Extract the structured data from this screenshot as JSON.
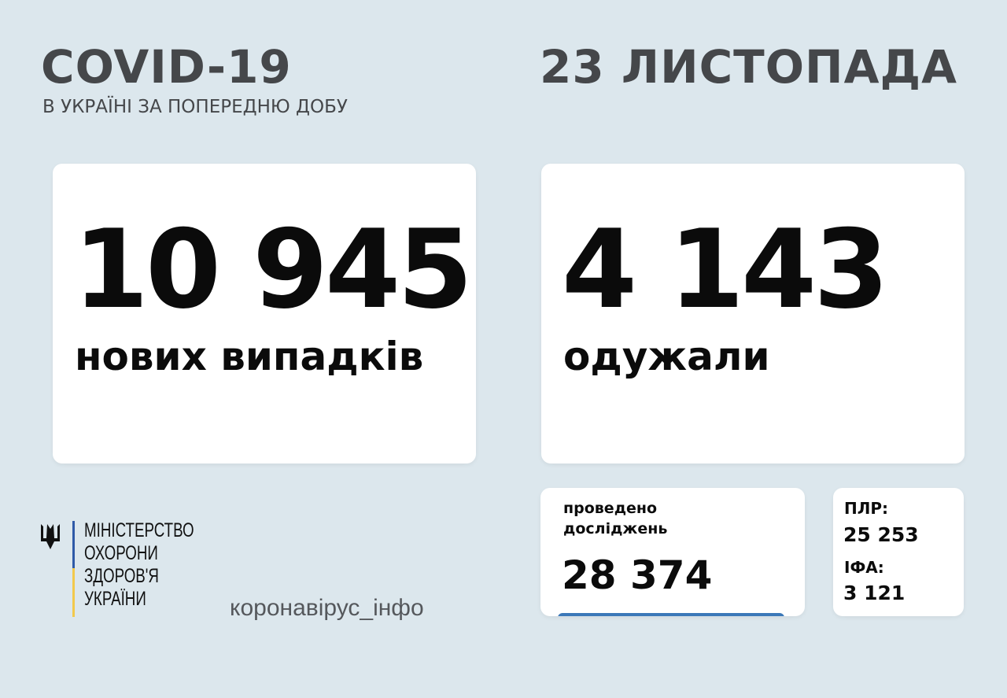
{
  "header": {
    "title": "COVID-19",
    "subtitle": "В УКРАЇНІ ЗА ПОПЕРЕДНЮ ДОБУ",
    "date": "23 ЛИСТОПАДА"
  },
  "cases": {
    "value": "10 945",
    "label": "нових випадків"
  },
  "recovered": {
    "value": "4 143",
    "label": "одужали"
  },
  "tests": {
    "label_line1": "проведено",
    "label_line2": "досліджень",
    "value": "28 374",
    "accent_color": "#3b78b8"
  },
  "breakdown": {
    "pcr_label": "ПЛР:",
    "pcr_value": "25 253",
    "ifa_label": "ІФА:",
    "ifa_value": "3 121"
  },
  "footer": {
    "ministry_lines": [
      "МІНІСТЕРСТВО",
      "ОХОРОНИ",
      "ЗДОРОВ'Я",
      "УКРАЇНИ"
    ],
    "logo_icon": "trident-icon",
    "site": "коронавірус_інфо",
    "flag_colors": [
      "#2f5aa8",
      "#f2c94c"
    ]
  }
}
